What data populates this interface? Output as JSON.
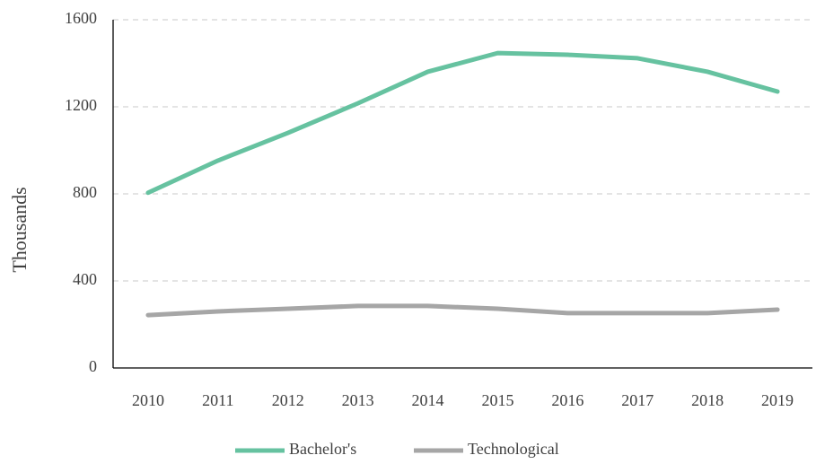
{
  "chart_data": {
    "type": "line",
    "y_label": "Thousands",
    "categories": [
      "2010",
      "2011",
      "2012",
      "2013",
      "2014",
      "2015",
      "2016",
      "2017",
      "2018",
      "2019"
    ],
    "series": [
      {
        "name": "Bachelor's",
        "color": "#66c2a0",
        "values": [
          805,
          953,
          1080,
          1216,
          1361,
          1447,
          1439,
          1423,
          1361,
          1270
        ]
      },
      {
        "name": "Technological",
        "color": "#a6a6a6",
        "values": [
          243,
          260,
          272,
          285,
          285,
          272,
          252,
          252,
          252,
          268
        ]
      }
    ],
    "ylim": [
      0,
      1600
    ],
    "yticks": [
      0,
      400,
      800,
      1200,
      1600
    ],
    "grid": true,
    "legend": "bottom"
  }
}
